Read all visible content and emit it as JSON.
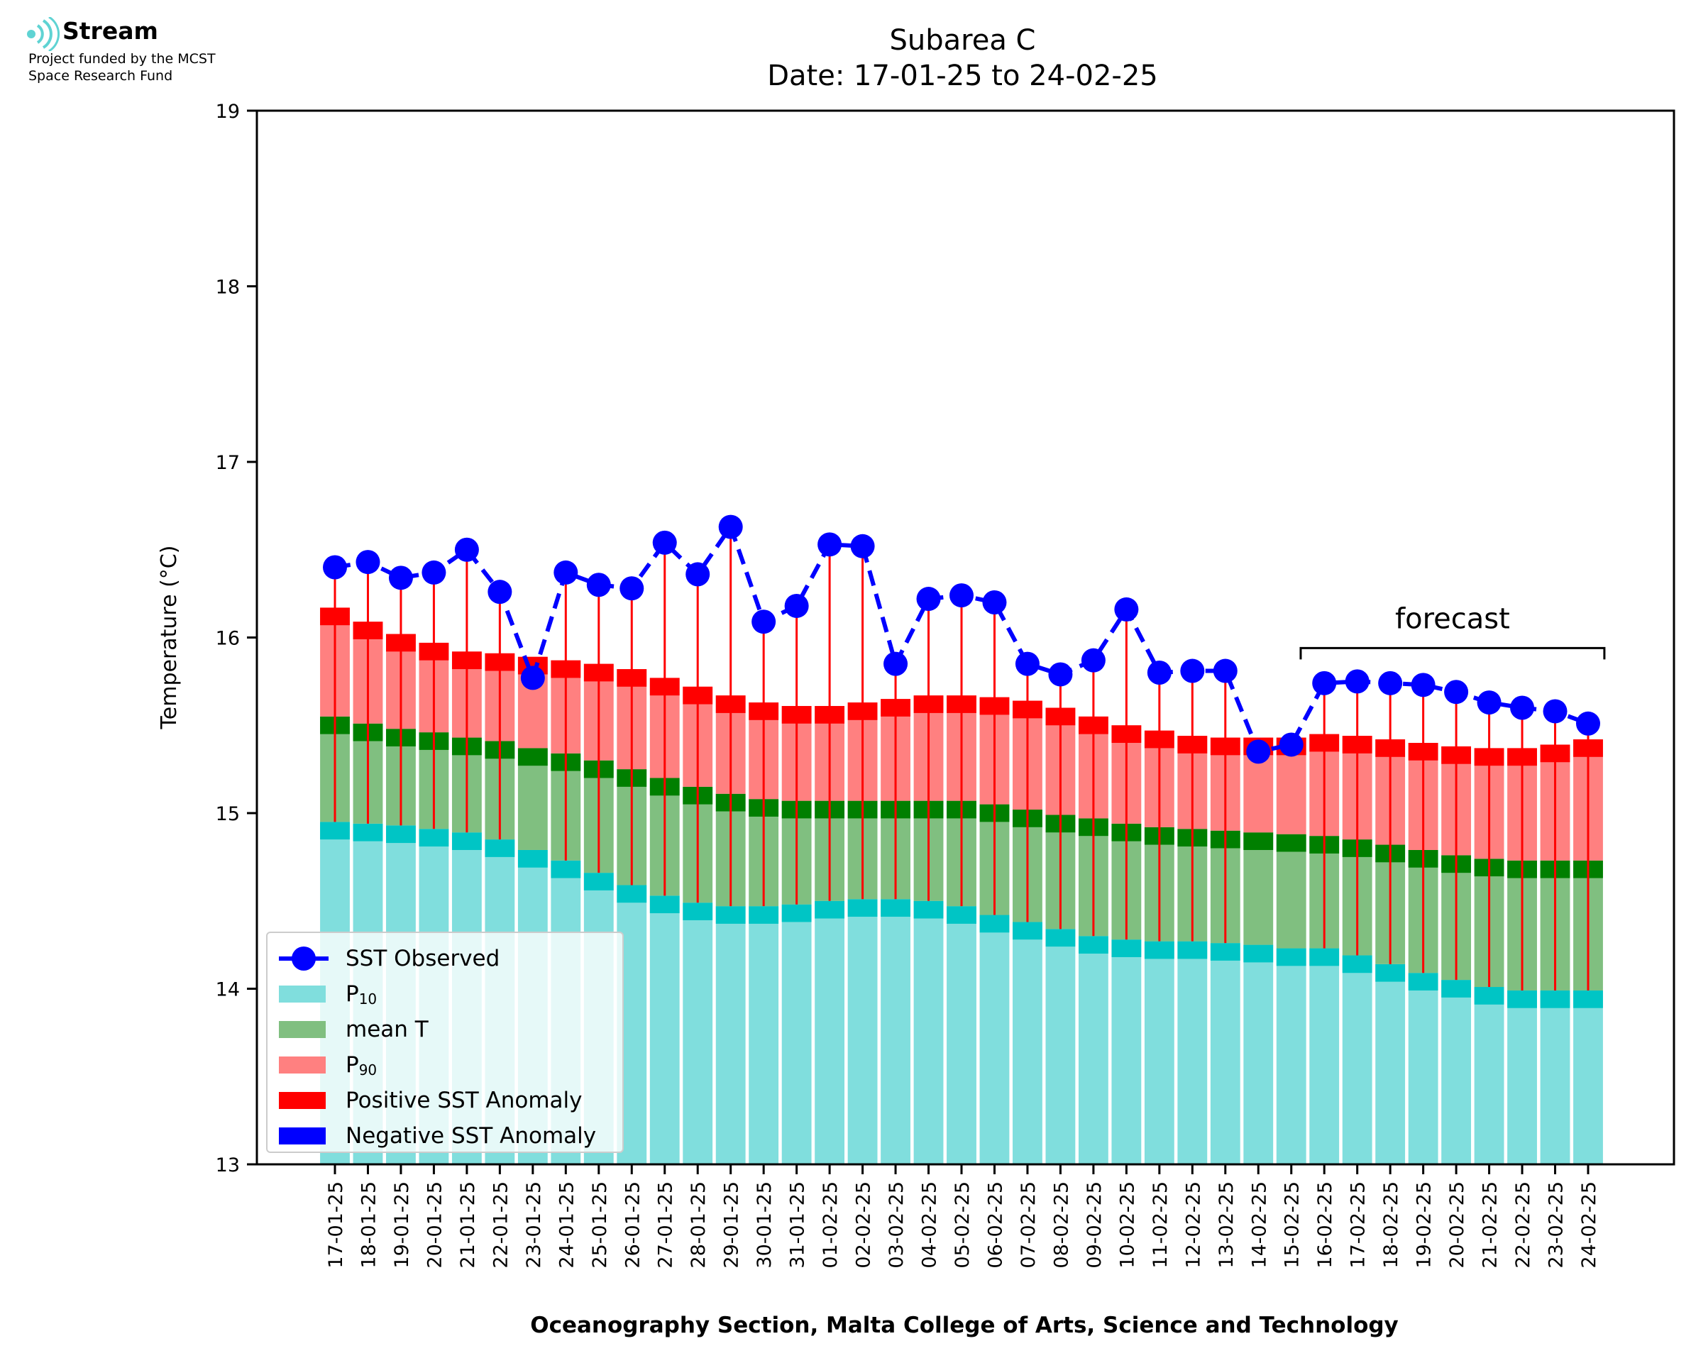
{
  "logo": {
    "name": "Stream",
    "line1": "Project funded by the MCST",
    "line2": "Space Research Fund"
  },
  "header": {
    "title": "Subarea C",
    "subtitle": "Date: 17-01-25 to 24-02-25"
  },
  "chart_data": {
    "type": "bar",
    "title": "Subarea C",
    "subtitle": "Date: 17-01-25 to 24-02-25",
    "xlabel": "Oceanography Section, Malta College of Arts, Science and Technology",
    "ylabel": "Temperature (°C)",
    "ylim": [
      13,
      19
    ],
    "yticks": [
      13,
      14,
      15,
      16,
      17,
      18,
      19
    ],
    "forecast_label": "forecast",
    "forecast_range": [
      "16-02-25",
      "24-02-25"
    ],
    "categories": [
      "17-01-25",
      "18-01-25",
      "19-01-25",
      "20-01-25",
      "21-01-25",
      "22-01-25",
      "23-01-25",
      "24-01-25",
      "25-01-25",
      "26-01-25",
      "27-01-25",
      "28-01-25",
      "29-01-25",
      "30-01-25",
      "31-01-25",
      "01-02-25",
      "02-02-25",
      "03-02-25",
      "04-02-25",
      "05-02-25",
      "06-02-25",
      "07-02-25",
      "08-02-25",
      "09-02-25",
      "10-02-25",
      "11-02-25",
      "12-02-25",
      "13-02-25",
      "14-02-25",
      "15-02-25",
      "16-02-25",
      "17-02-25",
      "18-02-25",
      "19-02-25",
      "20-02-25",
      "21-02-25",
      "22-02-25",
      "23-02-25",
      "24-02-25"
    ],
    "series": [
      {
        "name": "P10",
        "color": "#80dedd",
        "values": [
          14.95,
          14.94,
          14.93,
          14.91,
          14.89,
          14.85,
          14.79,
          14.73,
          14.66,
          14.59,
          14.53,
          14.49,
          14.47,
          14.47,
          14.48,
          14.5,
          14.51,
          14.51,
          14.5,
          14.47,
          14.42,
          14.38,
          14.34,
          14.3,
          14.28,
          14.27,
          14.27,
          14.26,
          14.25,
          14.23,
          14.23,
          14.19,
          14.14,
          14.09,
          14.05,
          14.01,
          13.99,
          13.99,
          13.99
        ]
      },
      {
        "name": "mean T",
        "color": "#80bf80",
        "values": [
          15.55,
          15.51,
          15.48,
          15.46,
          15.43,
          15.41,
          15.37,
          15.34,
          15.3,
          15.25,
          15.2,
          15.15,
          15.11,
          15.08,
          15.07,
          15.07,
          15.07,
          15.07,
          15.07,
          15.07,
          15.05,
          15.02,
          14.99,
          14.97,
          14.94,
          14.92,
          14.91,
          14.9,
          14.89,
          14.88,
          14.87,
          14.85,
          14.82,
          14.79,
          14.76,
          14.74,
          14.73,
          14.73,
          14.73
        ]
      },
      {
        "name": "P90",
        "color": "#ff8080",
        "values": [
          16.17,
          16.09,
          16.02,
          15.97,
          15.92,
          15.91,
          15.89,
          15.87,
          15.85,
          15.82,
          15.77,
          15.72,
          15.67,
          15.63,
          15.61,
          15.61,
          15.63,
          15.65,
          15.67,
          15.67,
          15.66,
          15.64,
          15.6,
          15.55,
          15.5,
          15.47,
          15.44,
          15.43,
          15.43,
          15.43,
          15.45,
          15.44,
          15.42,
          15.4,
          15.38,
          15.37,
          15.37,
          15.39,
          15.42
        ]
      },
      {
        "name": "SST Observed",
        "color": "#0000ff",
        "values": [
          16.4,
          16.43,
          16.34,
          16.37,
          16.5,
          16.26,
          15.77,
          16.37,
          16.3,
          16.28,
          16.54,
          16.36,
          16.63,
          16.09,
          16.18,
          16.53,
          16.52,
          15.85,
          16.22,
          16.24,
          16.2,
          15.85,
          15.79,
          15.87,
          16.16,
          15.8,
          15.81,
          15.81,
          15.35,
          15.39,
          15.74,
          15.75,
          15.74,
          15.73,
          15.69,
          15.63,
          15.6,
          15.58,
          15.51
        ]
      }
    ],
    "legend": {
      "placement": "lower-left",
      "entries": [
        {
          "label": "SST Observed",
          "color": "#0000ff",
          "kind": "line-marker"
        },
        {
          "label": "P",
          "sub": "10",
          "color": "#80dedd",
          "kind": "patch"
        },
        {
          "label": "mean T",
          "color": "#80bf80",
          "kind": "patch"
        },
        {
          "label": "P",
          "sub": "90",
          "color": "#ff8080",
          "kind": "patch"
        },
        {
          "label": "Positive SST Anomaly",
          "color": "#ff0000",
          "kind": "patch"
        },
        {
          "label": "Negative SST Anomaly",
          "color": "#0000ff",
          "kind": "patch"
        }
      ]
    },
    "band_colors": {
      "p10_cap": "#00c5c5",
      "mean_cap": "#007f00",
      "p90_cap": "#ff0000",
      "anomaly_line": "#ff0000"
    },
    "grid": false
  }
}
